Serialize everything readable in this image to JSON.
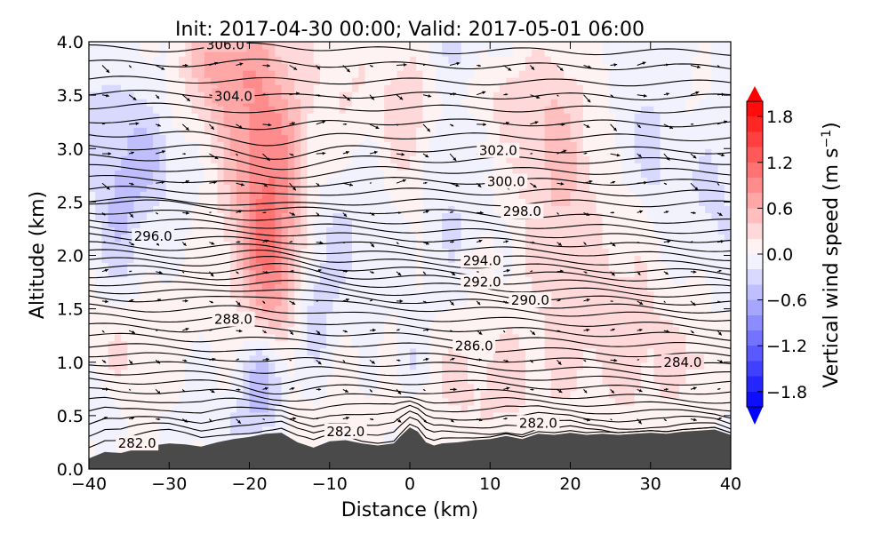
{
  "chart_data": {
    "type": "heatmap",
    "title": "Init: 2017-04-30 00:00; Valid: 2017-05-01 06:00",
    "xlabel": "Distance (km)",
    "ylabel": "Altitude (km)",
    "xlim": [
      -40,
      40
    ],
    "ylim": [
      0.0,
      4.0
    ],
    "x_ticks": [
      -40,
      -30,
      -20,
      -10,
      0,
      10,
      20,
      30,
      40
    ],
    "x_tick_labels": [
      "−40",
      "−30",
      "−20",
      "−10",
      "0",
      "10",
      "20",
      "30",
      "40"
    ],
    "y_ticks": [
      0.0,
      0.5,
      1.0,
      1.5,
      2.0,
      2.5,
      3.0,
      3.5,
      4.0
    ],
    "y_tick_labels": [
      "0.0",
      "0.5",
      "1.0",
      "1.5",
      "2.0",
      "2.5",
      "3.0",
      "3.5",
      "4.0"
    ],
    "colorbar": {
      "label": "Vertical wind speed (m s",
      "label_sup": "−1",
      "label_close": ")",
      "range": [
        -2.0,
        2.0
      ],
      "ticks": [
        -1.8,
        -1.2,
        -0.6,
        0.0,
        0.6,
        1.2,
        1.8
      ],
      "tick_labels": [
        "−1.8",
        "−1.2",
        "−0.6",
        "0.0",
        "0.6",
        "1.2",
        "1.8"
      ],
      "low_color": "#0000ff",
      "mid_color": "#ffffff",
      "high_color": "#ff0000"
    },
    "theta_contours": {
      "first": 282.0,
      "interval": 0.5,
      "labels": [
        {
          "text": "282.0",
          "x": -34,
          "y": 0.24
        },
        {
          "text": "282.0",
          "x": -8,
          "y": 0.35
        },
        {
          "text": "282.0",
          "x": 16,
          "y": 0.43
        },
        {
          "text": "284.0",
          "x": 34,
          "y": 1.0
        },
        {
          "text": "286.0",
          "x": 8,
          "y": 1.15
        },
        {
          "text": "288.0",
          "x": -22,
          "y": 1.4
        },
        {
          "text": "290.0",
          "x": 15,
          "y": 1.58
        },
        {
          "text": "292.0",
          "x": 9,
          "y": 1.75
        },
        {
          "text": "294.0",
          "x": 9,
          "y": 1.95
        },
        {
          "text": "296.0",
          "x": -32,
          "y": 2.18
        },
        {
          "text": "298.0",
          "x": 14,
          "y": 2.41
        },
        {
          "text": "300.0",
          "x": 12,
          "y": 2.69
        },
        {
          "text": "302.0",
          "x": 11,
          "y": 2.98
        },
        {
          "text": "304.0",
          "x": -22,
          "y": 3.49
        },
        {
          "text": "306.0",
          "x": -23,
          "y": 3.97
        }
      ]
    },
    "terrain": {
      "color": "#4a4a4a",
      "x": [
        -40,
        -38,
        -36,
        -34,
        -32,
        -30,
        -28,
        -26,
        -24,
        -22,
        -20,
        -18,
        -16,
        -14,
        -12,
        -10,
        -8,
        -6,
        -4,
        -2,
        -1,
        0,
        1,
        2,
        3,
        4,
        6,
        8,
        10,
        12,
        14,
        16,
        18,
        20,
        22,
        24,
        26,
        28,
        30,
        32,
        34,
        36,
        38,
        40
      ],
      "height": [
        0.1,
        0.16,
        0.15,
        0.19,
        0.22,
        0.24,
        0.23,
        0.21,
        0.25,
        0.28,
        0.3,
        0.33,
        0.34,
        0.25,
        0.2,
        0.26,
        0.27,
        0.24,
        0.22,
        0.24,
        0.32,
        0.39,
        0.35,
        0.25,
        0.22,
        0.24,
        0.25,
        0.27,
        0.28,
        0.31,
        0.28,
        0.33,
        0.32,
        0.34,
        0.32,
        0.33,
        0.32,
        0.33,
        0.34,
        0.33,
        0.35,
        0.36,
        0.37,
        0.32
      ]
    },
    "vertical_wind_features": [
      {
        "x": -18,
        "y": 2.8,
        "sx": 5,
        "sy": 1.3,
        "w": 1.0
      },
      {
        "x": -24,
        "y": 3.8,
        "sx": 5,
        "sy": 0.6,
        "w": 0.6
      },
      {
        "x": -17,
        "y": 1.9,
        "sx": 3,
        "sy": 0.6,
        "w": 0.45
      },
      {
        "x": 0,
        "y": 3.4,
        "sx": 3,
        "sy": 0.9,
        "w": 0.4
      },
      {
        "x": 19,
        "y": 2.7,
        "sx": 6,
        "sy": 1.1,
        "w": 0.5
      },
      {
        "x": 13,
        "y": 3.5,
        "sx": 7,
        "sy": 0.5,
        "w": 0.25
      },
      {
        "x": -7,
        "y": 3.6,
        "sx": 5,
        "sy": 0.6,
        "w": 0.25
      },
      {
        "x": -36,
        "y": 1.0,
        "sx": 5,
        "sy": 0.7,
        "w": 0.25
      },
      {
        "x": -14,
        "y": 0.7,
        "sx": 6,
        "sy": 1.0,
        "w": 0.25
      },
      {
        "x": 10,
        "y": 0.8,
        "sx": 12,
        "sy": 0.7,
        "w": 0.3
      },
      {
        "x": 30,
        "y": 1.0,
        "sx": 8,
        "sy": 0.8,
        "w": 0.28
      },
      {
        "x": 24,
        "y": 1.6,
        "sx": 6,
        "sy": 0.5,
        "w": 0.2
      },
      {
        "x": -28,
        "y": 1.5,
        "sx": 3,
        "sy": 0.4,
        "w": 0.2
      },
      {
        "x": 36,
        "y": 3.3,
        "sx": 4,
        "sy": 0.5,
        "w": 0.2
      },
      {
        "x": 28,
        "y": 2.3,
        "sx": 2,
        "sy": 0.4,
        "w": 0.2
      },
      {
        "x": -38,
        "y": 3.2,
        "sx": 6,
        "sy": 0.6,
        "w": -0.2
      },
      {
        "x": -36,
        "y": 2.4,
        "sx": 3,
        "sy": 0.7,
        "w": -0.35
      },
      {
        "x": -32,
        "y": 2.9,
        "sx": 3,
        "sy": 0.4,
        "w": -0.3
      },
      {
        "x": -18,
        "y": 0.85,
        "sx": 3,
        "sy": 0.4,
        "w": -0.7
      },
      {
        "x": -12,
        "y": 1.4,
        "sx": 3,
        "sy": 0.8,
        "w": -0.4
      },
      {
        "x": 0,
        "y": 1.0,
        "sx": 2,
        "sy": 0.3,
        "w": -0.3
      },
      {
        "x": 5,
        "y": 2.6,
        "sx": 4,
        "sy": 1.0,
        "w": -0.15
      },
      {
        "x": -8,
        "y": 2.2,
        "sx": 5,
        "sy": 0.6,
        "w": -0.15
      },
      {
        "x": 30,
        "y": 3.0,
        "sx": 8,
        "sy": 0.8,
        "w": -0.2
      },
      {
        "x": -38,
        "y": 0.6,
        "sx": 3,
        "sy": 0.3,
        "w": -0.2
      },
      {
        "x": 38,
        "y": 2.6,
        "sx": 3,
        "sy": 0.8,
        "w": -0.15
      },
      {
        "x": -20,
        "y": 0.45,
        "sx": 4,
        "sy": 0.2,
        "w": -0.25
      },
      {
        "x": 5,
        "y": 3.9,
        "sx": 8,
        "sy": 0.3,
        "w": -0.15
      }
    ]
  }
}
